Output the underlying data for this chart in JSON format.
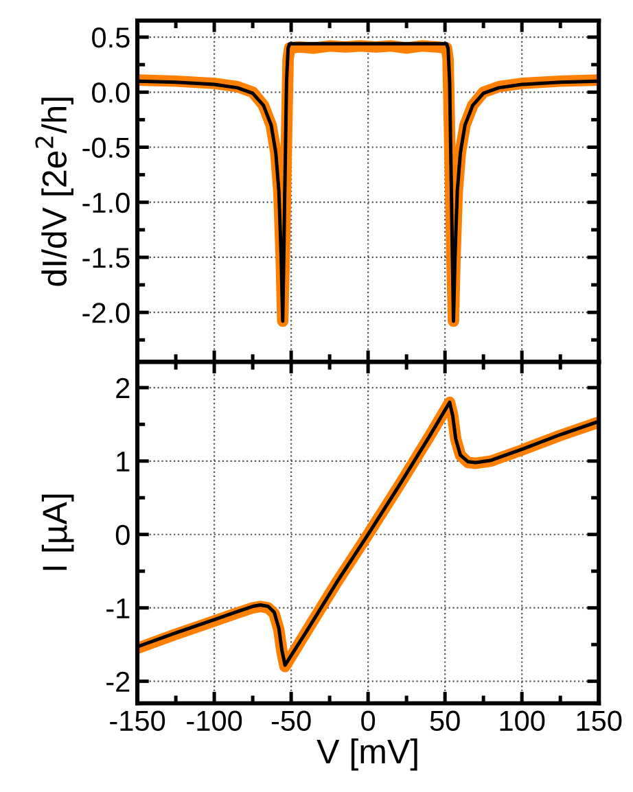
{
  "chart_data": [
    {
      "type": "line",
      "ylabel": "dI/dV [2e$^{2}$/h]",
      "xlim": [
        -150,
        150
      ],
      "xticks": [
        -150,
        -100,
        -50,
        0,
        50,
        100,
        150
      ],
      "ylim": [
        -2.45,
        0.65
      ],
      "yticks": [
        {
          "value": 0.5,
          "label": "0.5"
        },
        {
          "value": 0.0,
          "label": "0.0"
        },
        {
          "value": -0.5,
          "label": "-0.5"
        },
        {
          "value": -1.0,
          "label": "-1.0"
        },
        {
          "value": -1.5,
          "label": "-1.5"
        },
        {
          "value": -2.0,
          "label": "-2.0"
        }
      ],
      "tick_labels": "y",
      "grid": true,
      "line_style": "solid",
      "marker": "none",
      "series": [
        {
          "color": "#ff8000",
          "x": [
            -150,
            -125,
            -100,
            -85,
            -75,
            -68,
            -63,
            -60,
            -58,
            -56.5,
            -55.5,
            -54.5,
            -53,
            -52,
            -51,
            -45,
            -35,
            -25,
            -15,
            -5,
            5,
            15,
            25,
            35,
            45,
            51,
            52,
            53,
            54.5,
            55.5,
            56.5,
            58,
            60,
            63,
            68,
            75,
            85,
            100,
            125,
            150
          ],
          "values": [
            0.11,
            0.1,
            0.08,
            0.05,
            0.0,
            -0.12,
            -0.3,
            -0.55,
            -0.9,
            -1.5,
            -2.08,
            -1.5,
            -0.4,
            0.3,
            0.4,
            0.41,
            0.4,
            0.42,
            0.41,
            0.42,
            0.41,
            0.42,
            0.4,
            0.42,
            0.41,
            0.4,
            0.3,
            -0.4,
            -1.5,
            -2.08,
            -1.5,
            -0.9,
            -0.55,
            -0.3,
            -0.12,
            0.0,
            0.05,
            0.08,
            0.1,
            0.11
          ]
        },
        {
          "color": "#000000",
          "x": [
            -150,
            -125,
            -100,
            -85,
            -75,
            -68,
            -63,
            -60,
            -58,
            -56.5,
            -55.5,
            -54.5,
            -53,
            -52,
            -51,
            0,
            51,
            52,
            53,
            54.5,
            55.5,
            56.5,
            58,
            60,
            63,
            68,
            75,
            85,
            100,
            125,
            150
          ],
          "values": [
            0.1,
            0.09,
            0.07,
            0.04,
            -0.01,
            -0.12,
            -0.3,
            -0.55,
            -0.9,
            -1.5,
            -2.08,
            -1.2,
            0.1,
            0.4,
            0.44,
            0.44,
            0.44,
            0.4,
            0.1,
            -1.2,
            -2.08,
            -1.5,
            -0.9,
            -0.55,
            -0.3,
            -0.12,
            -0.01,
            0.04,
            0.07,
            0.09,
            0.1
          ]
        }
      ]
    },
    {
      "type": "line",
      "xlabel": "V [mV]",
      "ylabel": "I [µA]",
      "xlim": [
        -150,
        150
      ],
      "xticks": [
        -150,
        -100,
        -50,
        0,
        50,
        100,
        150
      ],
      "ylim": [
        -2.3,
        2.35
      ],
      "yticks": [
        -2,
        -1,
        0,
        1,
        2
      ],
      "grid": true,
      "line_style": "solid",
      "marker": "none",
      "series": [
        {
          "color": "#ff8000",
          "x": [
            -150,
            -125,
            -100,
            -85,
            -75,
            -70,
            -65,
            -61,
            -58,
            -56,
            -54,
            -40,
            -20,
            0,
            20,
            40,
            53,
            55,
            57,
            60,
            65,
            70,
            80,
            100,
            125,
            150
          ],
          "values": [
            -1.55,
            -1.36,
            -1.18,
            -1.07,
            -1.0,
            -0.98,
            -1.0,
            -1.08,
            -1.3,
            -1.6,
            -1.8,
            -1.32,
            -0.64,
            0.0,
            0.66,
            1.34,
            1.8,
            1.62,
            1.3,
            1.08,
            0.98,
            0.97,
            1.0,
            1.15,
            1.35,
            1.53
          ]
        },
        {
          "color": "#000000",
          "x": [
            -150,
            -125,
            -100,
            -85,
            -75,
            -70,
            -65,
            -61,
            -58,
            -56,
            -54,
            -40,
            -20,
            0,
            20,
            40,
            53,
            55,
            57,
            60,
            65,
            70,
            80,
            100,
            125,
            150
          ],
          "values": [
            -1.53,
            -1.34,
            -1.16,
            -1.05,
            -0.98,
            -0.96,
            -0.98,
            -1.06,
            -1.28,
            -1.58,
            -1.78,
            -1.32,
            -0.64,
            0.0,
            0.66,
            1.34,
            1.8,
            1.62,
            1.3,
            1.08,
            0.99,
            0.98,
            1.01,
            1.16,
            1.36,
            1.54
          ]
        }
      ]
    }
  ]
}
